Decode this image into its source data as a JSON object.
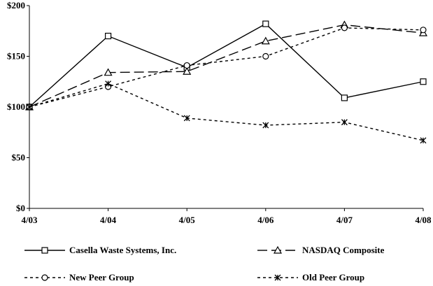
{
  "chart_data": {
    "type": "line",
    "title": "",
    "xlabel": "",
    "ylabel": "",
    "categories": [
      "4/03",
      "4/04",
      "4/05",
      "4/06",
      "4/07",
      "4/08"
    ],
    "y_ticks": [
      "$0",
      "$50",
      "$100",
      "$150",
      "$200"
    ],
    "ylim": [
      0,
      200
    ],
    "grid": false,
    "legend_position": "bottom",
    "series": [
      {
        "name": "Casella Waste Systems, Inc.",
        "values": [
          100,
          170,
          139,
          182,
          109,
          125
        ],
        "marker": "square",
        "dash": "solid",
        "color": "#000000"
      },
      {
        "name": "NASDAQ Composite",
        "values": [
          100,
          134,
          135,
          165,
          181,
          173
        ],
        "marker": "triangle",
        "dash": "long-dash",
        "color": "#000000"
      },
      {
        "name": "New Peer Group",
        "values": [
          100,
          120,
          141,
          150,
          178,
          176
        ],
        "marker": "circle",
        "dash": "short-dash",
        "color": "#000000"
      },
      {
        "name": "Old Peer Group",
        "values": [
          100,
          123,
          89,
          82,
          85,
          67
        ],
        "marker": "asterisk",
        "dash": "short-dash",
        "color": "#000000"
      }
    ]
  }
}
